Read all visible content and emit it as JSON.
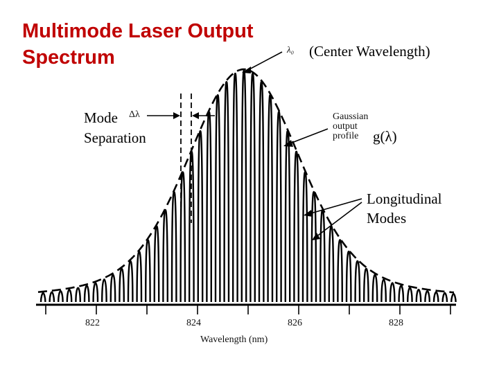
{
  "title": {
    "line1": "Multimode Laser Output",
    "line2": "Spectrum"
  },
  "labels": {
    "center_symbol": "λ₀",
    "center_wavelength": "(Center Wavelength)",
    "mode_line1": "Mode",
    "mode_line2": "Separation",
    "delta_lambda": "Δλ",
    "gaussian_line1": "Gaussian",
    "gaussian_line2": "output",
    "gaussian_line3": "profile",
    "g_lambda": "g(λ)",
    "longitudinal_line1": "Longitudinal",
    "longitudinal_line2": "Modes"
  },
  "chart_data": {
    "type": "line",
    "x_ticks": [
      "822",
      "824",
      "826",
      "828"
    ],
    "xlabel": "Wavelength (nm)",
    "center_wavelength": 825.0,
    "series": [
      {
        "values_description_key": "gaussian-envelope"
      }
    ]
  },
  "colors": {
    "title": "#c00000",
    "ink": "#000000"
  }
}
